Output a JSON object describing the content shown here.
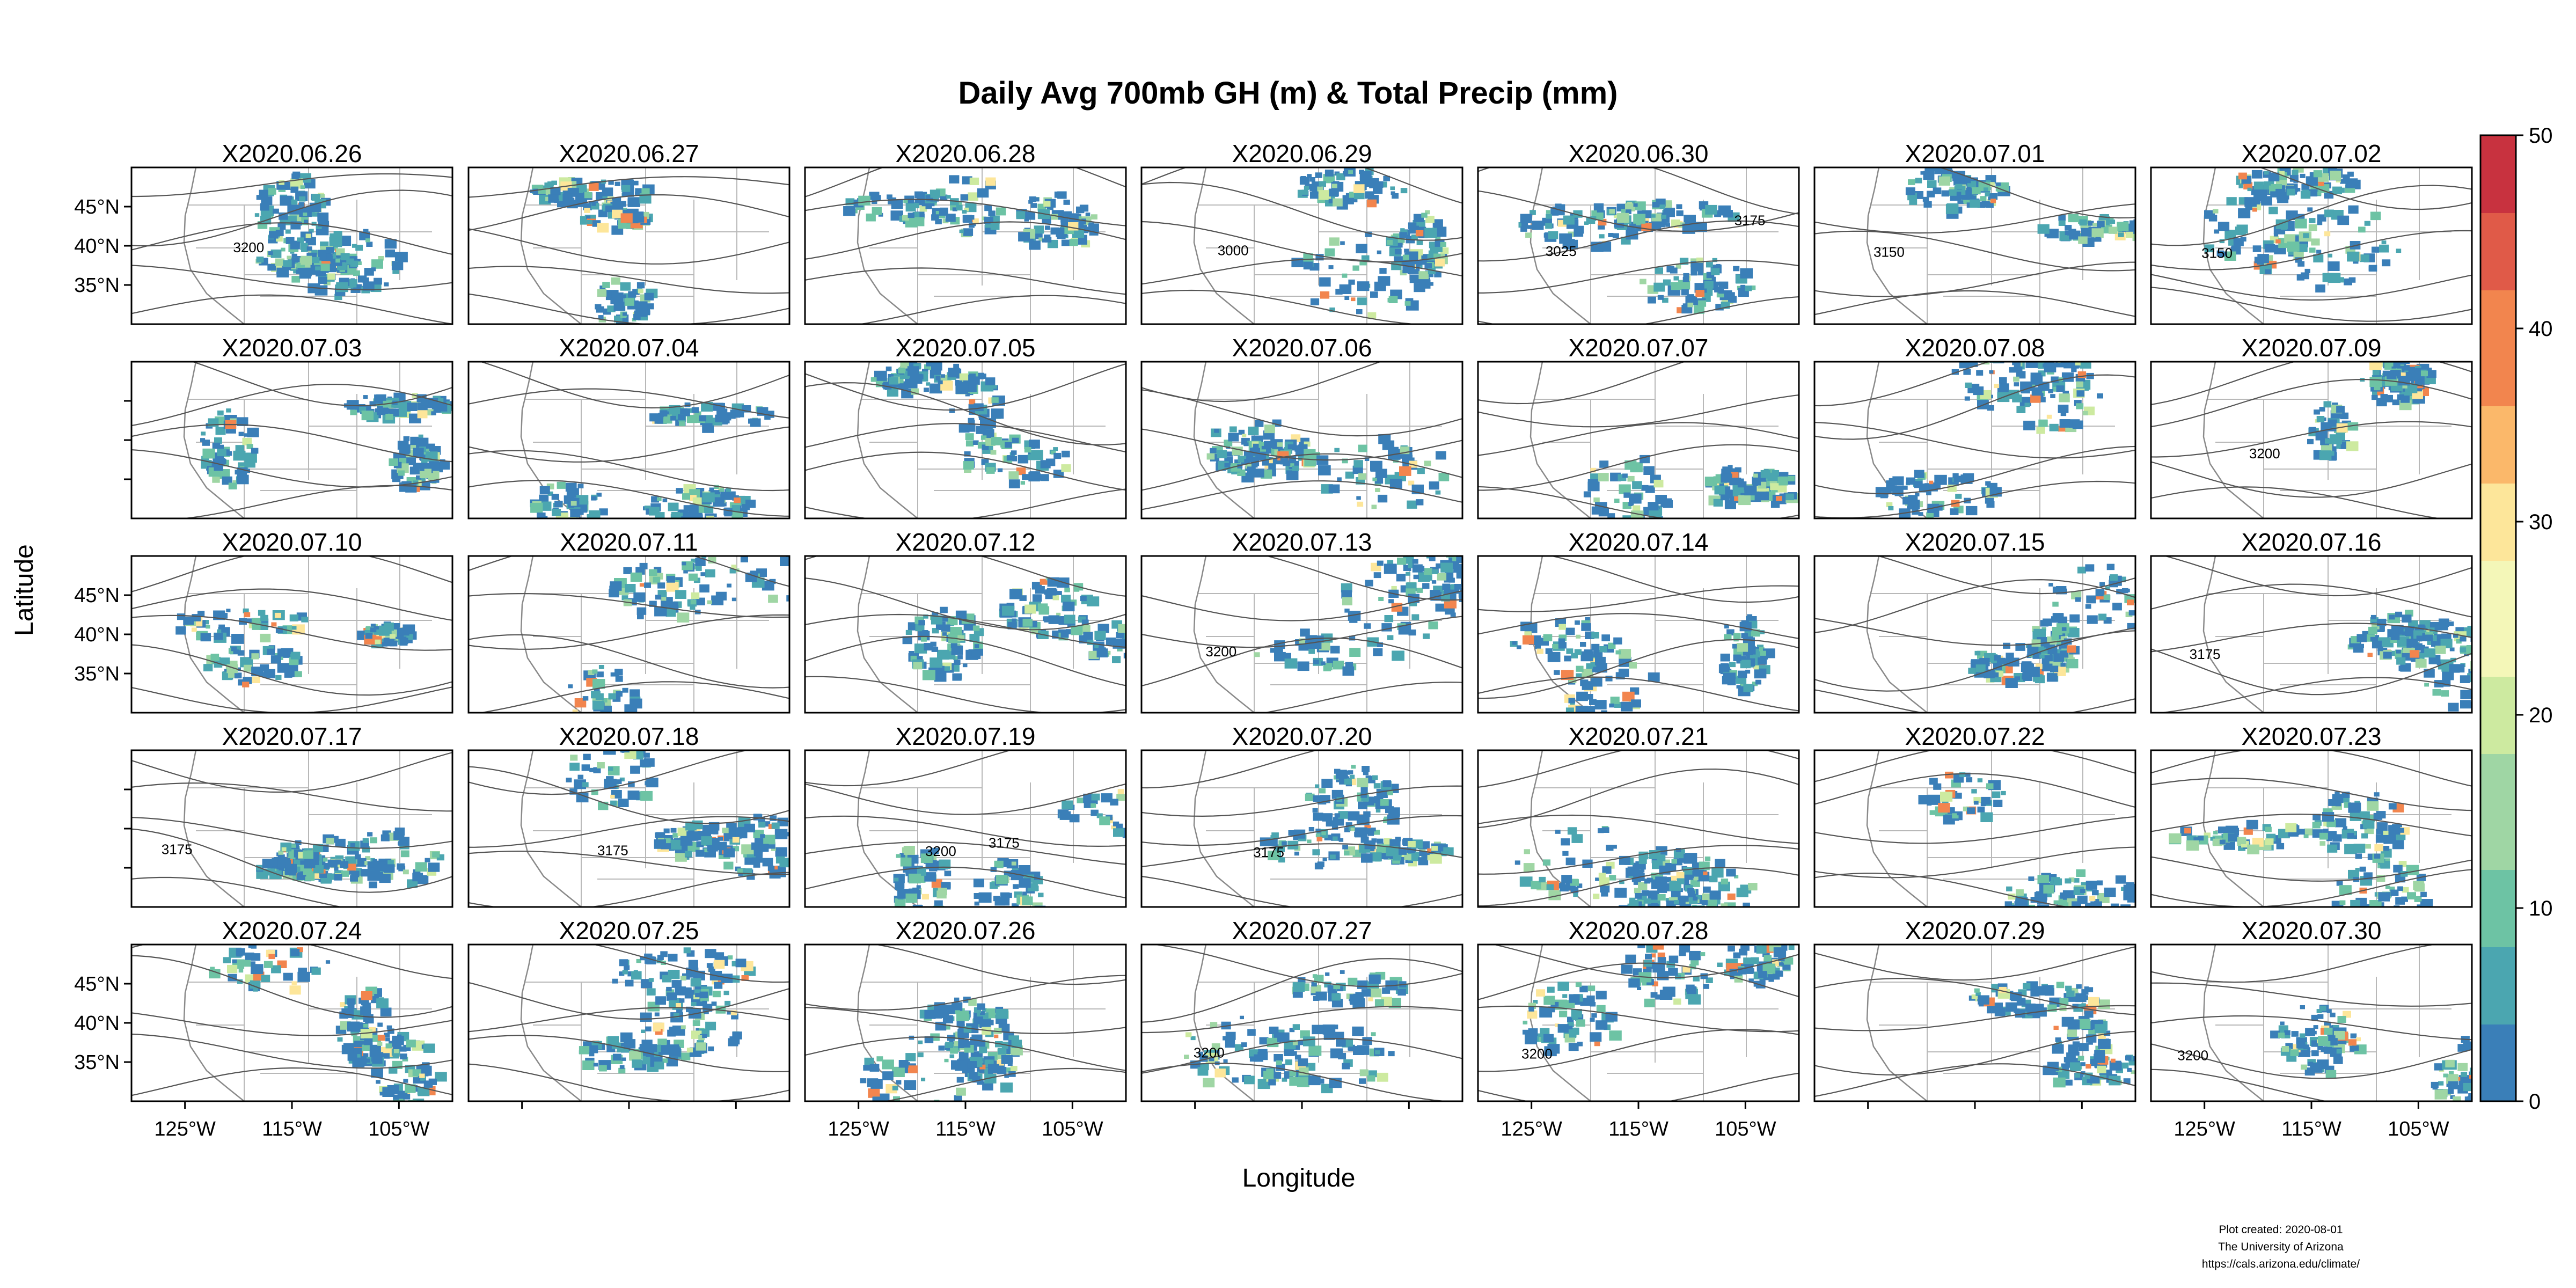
{
  "title": "Daily Avg 700mb GH (m) & Total Precip (mm)",
  "xlabel": "Longitude",
  "ylabel": "Latitude",
  "panels": [
    "X2020.06.26",
    "X2020.06.27",
    "X2020.06.28",
    "X2020.06.29",
    "X2020.06.30",
    "X2020.07.01",
    "X2020.07.02",
    "X2020.07.03",
    "X2020.07.04",
    "X2020.07.05",
    "X2020.07.06",
    "X2020.07.07",
    "X2020.07.08",
    "X2020.07.09",
    "X2020.07.10",
    "X2020.07.11",
    "X2020.07.12",
    "X2020.07.13",
    "X2020.07.14",
    "X2020.07.15",
    "X2020.07.16",
    "X2020.07.17",
    "X2020.07.18",
    "X2020.07.19",
    "X2020.07.20",
    "X2020.07.21",
    "X2020.07.22",
    "X2020.07.23",
    "X2020.07.24",
    "X2020.07.25",
    "X2020.07.26",
    "X2020.07.27",
    "X2020.07.28",
    "X2020.07.29",
    "X2020.07.30"
  ],
  "grid": {
    "rows": 5,
    "cols": 7
  },
  "map_extent": {
    "lon": [
      -130,
      -100
    ],
    "lat": [
      30,
      50
    ]
  },
  "x_ticks": [
    {
      "value": -125,
      "label": "125°W"
    },
    {
      "value": -115,
      "label": "115°W"
    },
    {
      "value": -105,
      "label": "105°W"
    }
  ],
  "y_ticks": [
    {
      "value": 45,
      "label": "45°N"
    },
    {
      "value": 40,
      "label": "40°N"
    },
    {
      "value": 35,
      "label": "35°N"
    }
  ],
  "x_axis_label_columns": [
    0,
    2,
    4,
    6
  ],
  "y_axis_label_rows": [
    0,
    2,
    4
  ],
  "colorbar": {
    "min": 0,
    "max": 50,
    "ticks": [
      0,
      10,
      20,
      30,
      40,
      50
    ],
    "colors": [
      "#3a7fb8",
      "#4ba6b0",
      "#6dc3a4",
      "#9fd6a4",
      "#cdeaa0",
      "#f4f7b8",
      "#fde69a",
      "#fbb86a",
      "#f2854e",
      "#e05a48",
      "#c8323f"
    ]
  },
  "contour_labels": [
    {
      "panel": 0,
      "text": "3200"
    },
    {
      "panel": 3,
      "text": "3000"
    },
    {
      "panel": 4,
      "text": "3025"
    },
    {
      "panel": 4,
      "text": "3175"
    },
    {
      "panel": 5,
      "text": "3150"
    },
    {
      "panel": 6,
      "text": "3150"
    },
    {
      "panel": 13,
      "text": "3200"
    },
    {
      "panel": 17,
      "text": "3200"
    },
    {
      "panel": 20,
      "text": "3175"
    },
    {
      "panel": 21,
      "text": "3175"
    },
    {
      "panel": 22,
      "text": "3175"
    },
    {
      "panel": 23,
      "text": "3200"
    },
    {
      "panel": 23,
      "text": "3175"
    },
    {
      "panel": 24,
      "text": "3175"
    },
    {
      "panel": 31,
      "text": "3200"
    },
    {
      "panel": 32,
      "text": "3200"
    },
    {
      "panel": 34,
      "text": "3200"
    }
  ],
  "footer": [
    "Plot created: 2020-08-01",
    "The University of Arizona",
    "https://cals.arizona.edu/climate/"
  ]
}
